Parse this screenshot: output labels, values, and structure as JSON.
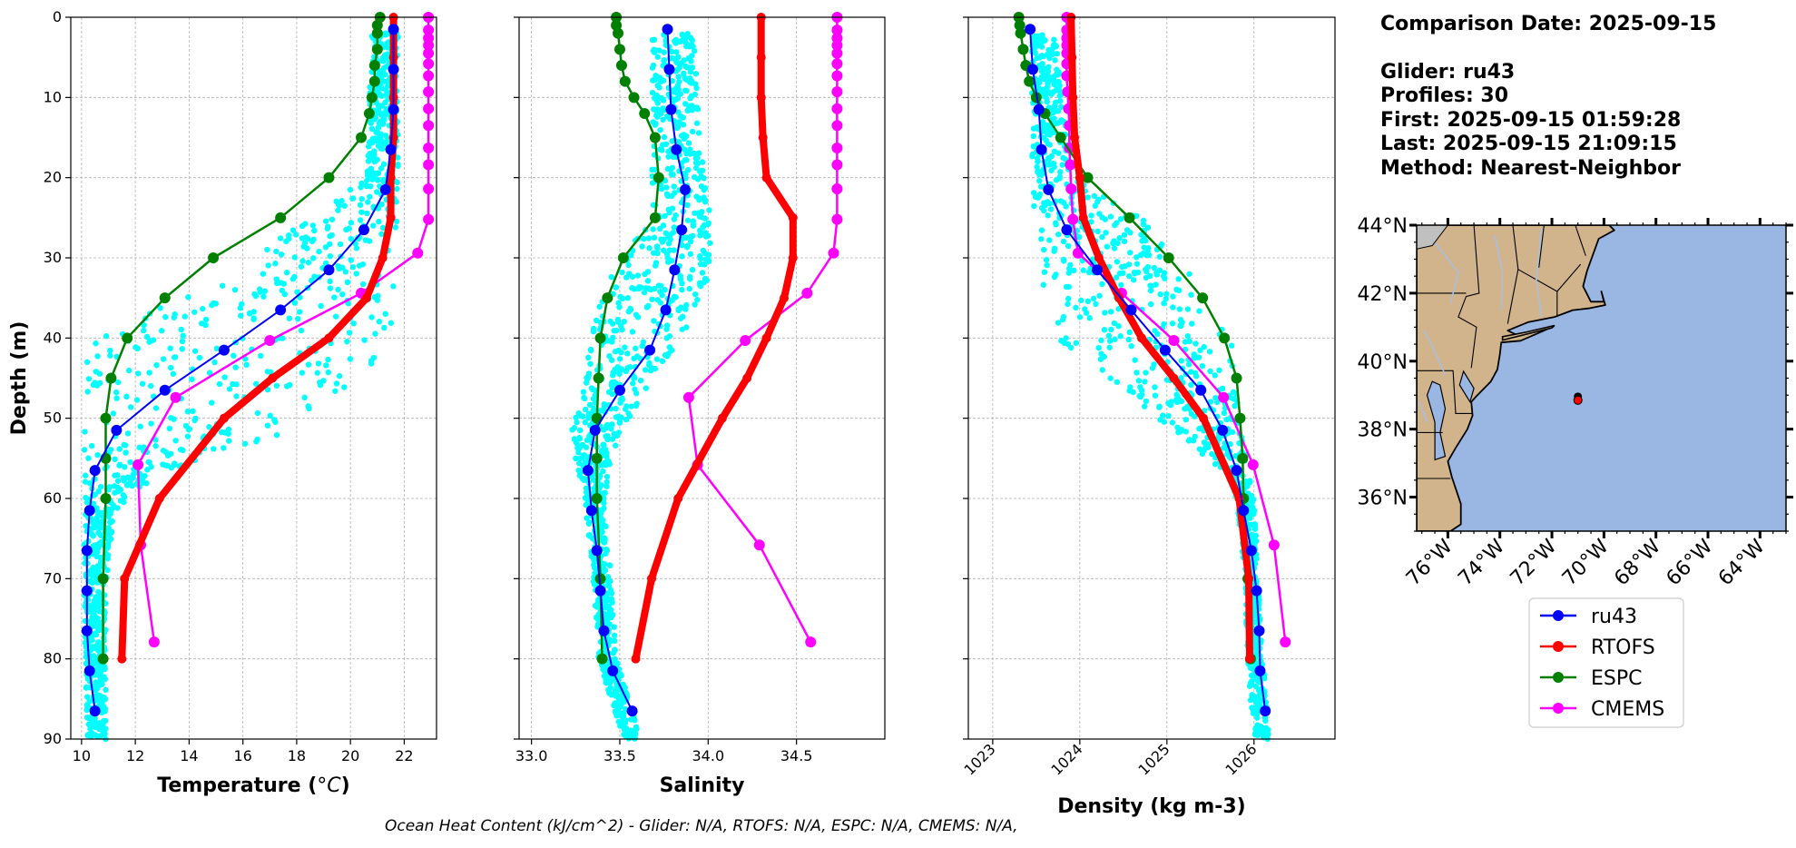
{
  "info": {
    "comparison_date": "Comparison Date: 2025-09-15",
    "glider": "Glider: ru43",
    "profiles": "Profiles: 30",
    "first": "First: 2025-09-15 01:59:28",
    "last": "Last: 2025-09-15 21:09:15",
    "method": "Method: Nearest-Neighbor"
  },
  "footer": "Ocean Heat Content (kJ/cm^2) - Glider: N/A,  RTOFS: N/A,  ESPC: N/A,  CMEMS: N/A,",
  "colors": {
    "ru43": "#0000ff",
    "RTOFS": "#ff0000",
    "ESPC": "#008000",
    "CMEMS": "#ff00ff",
    "glider_points": "#00ffff",
    "land": "#d2b48c",
    "ocean": "#9ab6e2"
  },
  "legend": [
    "ru43",
    "RTOFS",
    "ESPC",
    "CMEMS"
  ],
  "chart_data": [
    {
      "type": "line",
      "xlabel": "Temperature (°C)",
      "ylabel": "Depth (m)",
      "xlim": [
        9.6,
        23.2
      ],
      "ylim": [
        90,
        0
      ],
      "xticks": [
        10,
        12,
        14,
        16,
        18,
        20,
        22
      ],
      "yticks": [
        0,
        10,
        20,
        30,
        40,
        50,
        60,
        70,
        80,
        90
      ],
      "grid": true,
      "glider_band": {
        "depth": [
          2,
          20,
          25,
          33,
          40,
          46,
          52,
          57,
          62,
          72,
          90
        ],
        "min": [
          20.8,
          20.6,
          18.5,
          15,
          10.3,
          10.1,
          10.1,
          10.1,
          10.1,
          10.1,
          10.2
        ],
        "max": [
          21.8,
          21.8,
          21.8,
          21.8,
          21.6,
          20.2,
          17.5,
          12.8,
          11.2,
          10.9,
          10.9
        ]
      },
      "series": [
        {
          "name": "ru43",
          "depth": [
            1.5,
            6.5,
            11.5,
            16.5,
            21.5,
            26.5,
            31.5,
            36.5,
            41.5,
            46.5,
            51.5,
            56.5,
            61.5,
            66.5,
            71.5,
            76.5,
            81.5,
            86.5
          ],
          "values": [
            21.6,
            21.6,
            21.6,
            21.5,
            21.3,
            20.5,
            19.2,
            17.4,
            15.3,
            13.1,
            11.3,
            10.5,
            10.3,
            10.2,
            10.2,
            10.2,
            10.3,
            10.5
          ]
        },
        {
          "name": "RTOFS",
          "depth": [
            0,
            5,
            10,
            15,
            20,
            25,
            30,
            35,
            40,
            45,
            50,
            60,
            70,
            80
          ],
          "values": [
            21.6,
            21.6,
            21.6,
            21.6,
            21.5,
            21.5,
            21.2,
            20.6,
            19.2,
            17.1,
            15.3,
            12.9,
            11.6,
            11.5
          ]
        },
        {
          "name": "ESPC",
          "depth": [
            0,
            1,
            2,
            4,
            6,
            8,
            10,
            12,
            15,
            20,
            25,
            30,
            35,
            40,
            45,
            50,
            55,
            60,
            70,
            80
          ],
          "values": [
            21.1,
            21.0,
            21.0,
            21.0,
            20.9,
            20.9,
            20.8,
            20.7,
            20.4,
            19.2,
            17.4,
            14.9,
            13.1,
            11.7,
            11.1,
            10.9,
            10.9,
            10.9,
            10.8,
            10.8
          ]
        },
        {
          "name": "CMEMS",
          "depth": [
            0,
            1.6,
            2.6,
            3.5,
            4.5,
            5.8,
            7.3,
            9.3,
            11.4,
            13.5,
            16.3,
            18.4,
            21.4,
            25.2,
            29.4,
            34.4,
            40.3,
            47.4,
            55.8,
            65.8,
            77.9
          ],
          "values": [
            22.9,
            22.9,
            22.9,
            22.9,
            22.9,
            22.9,
            22.9,
            22.9,
            22.9,
            22.9,
            22.9,
            22.9,
            22.9,
            22.9,
            22.5,
            20.4,
            17.0,
            13.5,
            12.1,
            12.2,
            12.7
          ]
        }
      ]
    },
    {
      "type": "line",
      "xlabel": "Salinity",
      "ylabel": "",
      "xlim": [
        32.93,
        35.0
      ],
      "ylim": [
        90,
        0
      ],
      "xticks": [
        33.0,
        33.5,
        34.0,
        34.5
      ],
      "yticks": [
        0,
        10,
        20,
        30,
        40,
        50,
        60,
        70,
        80,
        90
      ],
      "grid": true,
      "glider_band": {
        "depth": [
          2,
          15,
          25,
          33,
          38,
          45,
          50,
          55,
          60,
          70,
          80,
          90
        ],
        "min": [
          33.68,
          33.68,
          33.68,
          33.42,
          33.35,
          33.3,
          33.22,
          33.25,
          33.3,
          33.35,
          33.38,
          33.52
        ],
        "max": [
          33.92,
          33.95,
          34.02,
          34.0,
          33.9,
          33.7,
          33.55,
          33.45,
          33.42,
          33.45,
          33.48,
          33.62
        ]
      },
      "series": [
        {
          "name": "ru43",
          "depth": [
            1.5,
            6.5,
            11.5,
            16.5,
            21.5,
            26.5,
            31.5,
            36.5,
            41.5,
            46.5,
            51.5,
            56.5,
            61.5,
            66.5,
            71.5,
            76.5,
            81.5,
            86.5
          ],
          "values": [
            33.77,
            33.78,
            33.79,
            33.82,
            33.87,
            33.85,
            33.81,
            33.76,
            33.67,
            33.5,
            33.36,
            33.32,
            33.34,
            33.37,
            33.39,
            33.41,
            33.46,
            33.57
          ]
        },
        {
          "name": "RTOFS",
          "depth": [
            0,
            5,
            10,
            15,
            20,
            25,
            30,
            35,
            40,
            45,
            50,
            60,
            70,
            80
          ],
          "values": [
            34.3,
            34.3,
            34.3,
            34.31,
            34.33,
            34.48,
            34.48,
            34.43,
            34.33,
            34.22,
            34.08,
            33.83,
            33.68,
            33.59
          ]
        },
        {
          "name": "ESPC",
          "depth": [
            0,
            1,
            2,
            4,
            6,
            8,
            10,
            12,
            15,
            20,
            25,
            30,
            35,
            40,
            45,
            50,
            55,
            60,
            70,
            80
          ],
          "values": [
            33.48,
            33.48,
            33.49,
            33.5,
            33.51,
            33.53,
            33.58,
            33.64,
            33.7,
            33.72,
            33.7,
            33.52,
            33.43,
            33.39,
            33.38,
            33.37,
            33.37,
            33.37,
            33.39,
            33.4
          ]
        },
        {
          "name": "CMEMS",
          "depth": [
            0,
            1.6,
            2.6,
            3.5,
            4.5,
            5.8,
            7.3,
            9.3,
            11.4,
            13.5,
            16.3,
            18.4,
            21.4,
            25.2,
            29.4,
            34.4,
            40.3,
            47.4,
            55.8,
            65.8,
            77.9
          ],
          "values": [
            34.73,
            34.73,
            34.73,
            34.73,
            34.73,
            34.73,
            34.73,
            34.73,
            34.73,
            34.73,
            34.73,
            34.73,
            34.73,
            34.73,
            34.71,
            34.56,
            34.21,
            33.89,
            33.94,
            34.29,
            34.58
          ]
        }
      ]
    },
    {
      "type": "line",
      "xlabel": "Density (kg m-3)",
      "ylabel": "",
      "xlim": [
        1022.72,
        1026.93
      ],
      "ylim": [
        90,
        0
      ],
      "xticks": [
        1023,
        1024,
        1025,
        1026
      ],
      "yticks": [
        0,
        10,
        20,
        30,
        40,
        50,
        60,
        70,
        80,
        90
      ],
      "grid": true,
      "glider_band": {
        "depth": [
          2,
          20,
          25,
          33,
          40,
          45,
          50,
          57,
          60,
          70,
          80,
          90
        ],
        "min": [
          1023.45,
          1023.45,
          1023.45,
          1023.55,
          1023.75,
          1024.3,
          1024.9,
          1025.7,
          1025.8,
          1025.9,
          1025.92,
          1026.0
        ],
        "max": [
          1023.72,
          1023.9,
          1024.7,
          1025.4,
          1025.75,
          1025.8,
          1025.85,
          1025.95,
          1026.0,
          1026.05,
          1026.1,
          1026.2
        ]
      },
      "series": [
        {
          "name": "ru43",
          "depth": [
            1.5,
            6.5,
            11.5,
            16.5,
            21.5,
            26.5,
            31.5,
            36.5,
            41.5,
            46.5,
            51.5,
            56.5,
            61.5,
            66.5,
            71.5,
            76.5,
            81.5,
            86.5
          ],
          "values": [
            1023.43,
            1023.46,
            1023.53,
            1023.56,
            1023.64,
            1023.85,
            1024.2,
            1024.59,
            1024.98,
            1025.39,
            1025.64,
            1025.8,
            1025.88,
            1025.97,
            1026.03,
            1026.06,
            1026.07,
            1026.13
          ]
        },
        {
          "name": "RTOFS",
          "depth": [
            0,
            5,
            10,
            15,
            20,
            25,
            30,
            35,
            40,
            45,
            50,
            60,
            70,
            80
          ],
          "values": [
            1023.9,
            1023.91,
            1023.92,
            1023.94,
            1024.0,
            1024.04,
            1024.22,
            1024.45,
            1024.71,
            1025.08,
            1025.42,
            1025.83,
            1025.94,
            1025.95
          ]
        },
        {
          "name": "ESPC",
          "depth": [
            0,
            1,
            2,
            4,
            6,
            8,
            10,
            12,
            15,
            20,
            25,
            30,
            35,
            40,
            45,
            50,
            55,
            60,
            70,
            80
          ],
          "values": [
            1023.3,
            1023.31,
            1023.32,
            1023.35,
            1023.38,
            1023.42,
            1023.5,
            1023.6,
            1023.78,
            1024.09,
            1024.57,
            1025.02,
            1025.41,
            1025.66,
            1025.8,
            1025.84,
            1025.87,
            1025.88,
            1025.93,
            1025.96
          ]
        },
        {
          "name": "CMEMS",
          "depth": [
            0,
            1.6,
            2.6,
            3.5,
            4.5,
            5.8,
            7.3,
            9.3,
            11.4,
            13.5,
            16.3,
            18.4,
            21.4,
            25.2,
            29.4,
            34.4,
            40.3,
            47.4,
            55.8,
            65.8,
            77.9
          ],
          "values": [
            1023.85,
            1023.85,
            1023.85,
            1023.85,
            1023.85,
            1023.85,
            1023.85,
            1023.86,
            1023.87,
            1023.88,
            1023.88,
            1023.89,
            1023.9,
            1023.92,
            1023.98,
            1024.48,
            1025.08,
            1025.65,
            1025.99,
            1026.23,
            1026.36
          ]
        }
      ]
    },
    {
      "type": "map",
      "lon_range": [
        -77.2,
        -63.0
      ],
      "lat_range": [
        35.0,
        44.0
      ],
      "x_ticks": [
        "76°W",
        "74°W",
        "72°W",
        "70°W",
        "68°W",
        "66°W",
        "64°W"
      ],
      "x_tick_values": [
        -76,
        -74,
        -72,
        -70,
        -68,
        -66,
        -64
      ],
      "y_ticks": [
        "44°N",
        "42°N",
        "40°N",
        "38°N",
        "36°N"
      ],
      "y_tick_values": [
        44,
        42,
        40,
        38,
        36
      ],
      "glider_location": [
        -71.0,
        38.85
      ]
    }
  ]
}
